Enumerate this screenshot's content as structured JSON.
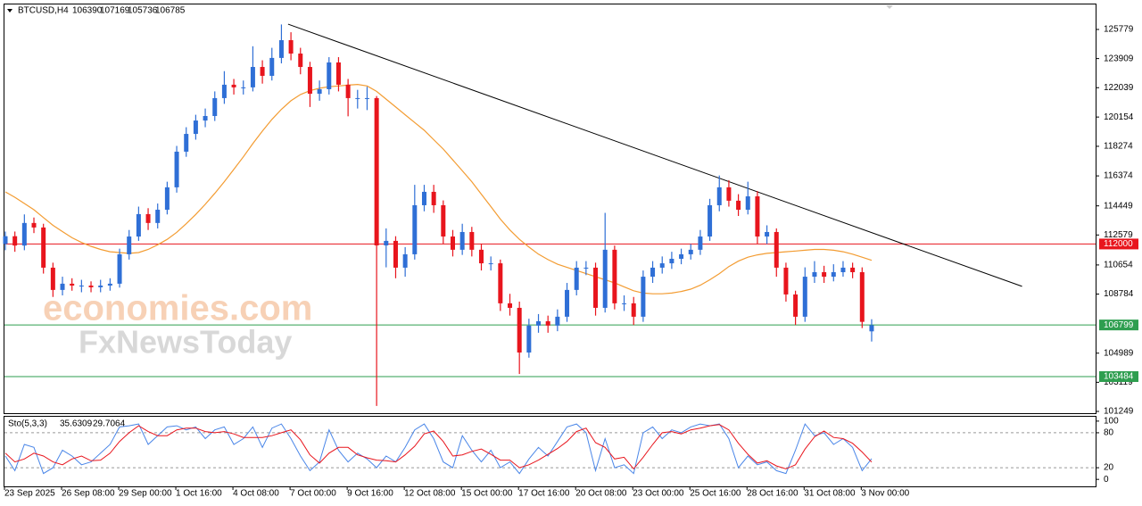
{
  "chart_data": {
    "type": "candlestick",
    "symbol": "BTCUSD,H4",
    "categories": [
      "23 Sep 2025",
      null,
      null,
      null,
      null,
      null,
      "26 Sep 08:00",
      null,
      null,
      null,
      null,
      null,
      "29 Sep 00:00",
      null,
      null,
      null,
      null,
      null,
      "1 Oct 16:00",
      null,
      null,
      null,
      null,
      null,
      "4 Oct 08:00",
      null,
      null,
      null,
      null,
      null,
      "7 Oct 00:00",
      null,
      null,
      null,
      null,
      null,
      "9 Oct 16:00",
      null,
      null,
      null,
      null,
      null,
      "12 Oct 08:00",
      null,
      null,
      null,
      null,
      null,
      "15 Oct 00:00",
      null,
      null,
      null,
      null,
      null,
      "17 Oct 16:00",
      null,
      null,
      null,
      null,
      null,
      "20 Oct 08:00",
      null,
      null,
      null,
      null,
      null,
      "23 Oct 00:00",
      null,
      null,
      null,
      null,
      null,
      "25 Oct 16:00",
      null,
      null,
      null,
      null,
      null,
      "28 Oct 16:00",
      null,
      null,
      null,
      null,
      null,
      "31 Oct 08:00",
      null,
      null,
      null,
      null,
      null,
      "3 Nov 00:00",
      null
    ],
    "open": [
      112000,
      112500,
      111900,
      113350,
      113060,
      110480,
      109050,
      109450,
      109330,
      109330,
      109220,
      109330,
      109450,
      111340,
      112480,
      113920,
      113350,
      114200,
      115640,
      117930,
      119070,
      119930,
      120220,
      121370,
      122230,
      122060,
      122060,
      123370,
      122800,
      123950,
      125090,
      124230,
      123370,
      121650,
      121940,
      123660,
      122230,
      121370,
      121370,
      121370,
      111910,
      112200,
      110480,
      111340,
      114490,
      115350,
      114490,
      112480,
      111630,
      112770,
      111630,
      110760,
      110760,
      108190,
      107900,
      105030,
      106760,
      107040,
      106760,
      107330,
      109050,
      110480,
      110480,
      107900,
      111630,
      108190,
      108190,
      107330,
      109900,
      110480,
      110760,
      111050,
      111340,
      111630,
      112480,
      114490,
      115640,
      114780,
      114200,
      115060,
      112480,
      112770,
      110480,
      108760,
      107330,
      109900,
      110190,
      109900,
      110190,
      110480,
      110190,
      106390
    ],
    "high": [
      112800,
      112800,
      113900,
      113700,
      113300,
      110800,
      109900,
      109800,
      109700,
      109600,
      109700,
      109800,
      111700,
      112900,
      114400,
      114300,
      114600,
      116000,
      118300,
      119500,
      120300,
      120700,
      121800,
      123100,
      122600,
      122500,
      124700,
      123800,
      124600,
      126100,
      125600,
      124600,
      123700,
      122500,
      124000,
      124000,
      122600,
      121900,
      122100,
      121500,
      113000,
      112500,
      111800,
      115800,
      115800,
      115800,
      114800,
      112900,
      113300,
      113100,
      112000,
      111200,
      111000,
      108800,
      108300,
      107200,
      107500,
      107400,
      107800,
      109500,
      110900,
      110900,
      110800,
      114000,
      111900,
      108700,
      108600,
      110300,
      110900,
      111200,
      111500,
      111700,
      112000,
      112900,
      114900,
      116400,
      116100,
      115200,
      116000,
      115400,
      113200,
      113000,
      110800,
      109000,
      110500,
      110900,
      110600,
      110700,
      110900,
      110800,
      110500,
      107169
    ],
    "low": [
      111600,
      111500,
      111600,
      112700,
      110100,
      108600,
      108700,
      109000,
      108900,
      108900,
      108900,
      109000,
      109200,
      111000,
      112200,
      112900,
      113000,
      113900,
      115300,
      117600,
      118700,
      119500,
      119900,
      121000,
      121600,
      121600,
      121800,
      122300,
      122500,
      123600,
      123800,
      122900,
      120800,
      121200,
      121600,
      121800,
      120200,
      120700,
      120600,
      101600,
      110500,
      109800,
      109900,
      111000,
      114100,
      114000,
      112000,
      111200,
      111300,
      111200,
      110300,
      110300,
      107700,
      107400,
      103650,
      104700,
      106300,
      106300,
      106400,
      107000,
      108700,
      110000,
      107400,
      107600,
      107800,
      107700,
      106800,
      107000,
      109500,
      110100,
      110400,
      110700,
      111000,
      111300,
      112200,
      114100,
      114400,
      113800,
      113900,
      112000,
      112000,
      109900,
      108300,
      106800,
      107000,
      109500,
      109500,
      109600,
      109900,
      109800,
      106600,
      105736
    ],
    "close": [
      112500,
      111900,
      113350,
      113060,
      110480,
      109050,
      109450,
      109330,
      109330,
      109220,
      109330,
      109450,
      111340,
      112480,
      113920,
      113350,
      114200,
      115640,
      117930,
      119070,
      119930,
      120220,
      121370,
      122230,
      122060,
      122060,
      123370,
      122800,
      123950,
      125090,
      124230,
      123370,
      121650,
      121940,
      123660,
      122230,
      121370,
      121370,
      121370,
      111910,
      112200,
      110480,
      111340,
      114490,
      115350,
      114490,
      112480,
      111630,
      112770,
      111630,
      110760,
      110760,
      108190,
      107900,
      105030,
      106760,
      107040,
      106760,
      107330,
      109050,
      110480,
      110480,
      107900,
      111630,
      108190,
      108190,
      107330,
      109900,
      110480,
      110760,
      111050,
      111340,
      111630,
      112480,
      114490,
      115640,
      114780,
      114200,
      115060,
      112480,
      112770,
      110480,
      108760,
      107330,
      109900,
      110190,
      109900,
      110190,
      110480,
      110190,
      107000,
      106785
    ],
    "up_color": "#2f6fd6",
    "down_color": "#e8151d",
    "ylim": [
      101134,
      127441
    ],
    "yticks": [
      125779,
      123909,
      122039,
      120154,
      118274,
      116374,
      114449,
      112579,
      110654,
      108784,
      104989,
      103119,
      101249
    ],
    "levels": [
      {
        "value": 112000,
        "color": "#e8151d"
      },
      {
        "value": 106799,
        "color": "#2e9e4f"
      },
      {
        "value": 103484,
        "color": "#2e9e4f"
      }
    ],
    "moving_average": {
      "color": "#f39c32",
      "values": [
        115350,
        115000,
        114600,
        114200,
        113700,
        113200,
        112800,
        112400,
        112100,
        111850,
        111650,
        111500,
        111450,
        111400,
        111450,
        111650,
        111950,
        112300,
        112750,
        113300,
        113900,
        114550,
        115250,
        116000,
        116800,
        117600,
        118450,
        119250,
        120000,
        120650,
        121200,
        121600,
        121850,
        122000,
        122100,
        122150,
        122200,
        122250,
        122150,
        121800,
        121300,
        120800,
        120300,
        119800,
        119300,
        118700,
        118100,
        117400,
        116700,
        116000,
        115200,
        114400,
        113600,
        112900,
        112300,
        111800,
        111350,
        111000,
        110700,
        110500,
        110300,
        110100,
        109900,
        109700,
        109500,
        109250,
        109000,
        108850,
        108800,
        108800,
        108850,
        108950,
        109100,
        109350,
        109700,
        110100,
        110550,
        110900,
        111150,
        111300,
        111400,
        111450,
        111500,
        111550,
        111600,
        111650,
        111650,
        111600,
        111500,
        111350,
        111150,
        110950
      ]
    },
    "trendline": {
      "x": [
        29.7,
        106.8
      ],
      "y": [
        126120,
        109280
      ],
      "color": "#000000"
    },
    "stochastic": {
      "label": "Sto(5,3,3)",
      "ylim": [
        -12,
        109
      ],
      "yticks": [
        0,
        20,
        80,
        100
      ],
      "main": {
        "color": "#4a86e8",
        "values": [
          40,
          15,
          60,
          55,
          10,
          20,
          50,
          40,
          25,
          30,
          45,
          60,
          90,
          92,
          95,
          60,
          75,
          90,
          92,
          85,
          90,
          70,
          85,
          90,
          60,
          70,
          90,
          55,
          88,
          95,
          70,
          40,
          15,
          30,
          85,
          50,
          30,
          45,
          35,
          20,
          40,
          30,
          55,
          85,
          95,
          70,
          30,
          20,
          75,
          50,
          30,
          50,
          20,
          30,
          10,
          35,
          55,
          40,
          65,
          90,
          95,
          80,
          15,
          70,
          20,
          25,
          10,
          80,
          90,
          70,
          85,
          80,
          90,
          95,
          92,
          95,
          70,
          20,
          40,
          25,
          30,
          15,
          10,
          50,
          95,
          75,
          80,
          60,
          70,
          55,
          15,
          35.6309
        ]
      },
      "signal": {
        "color": "#e8151d",
        "values": [
          45,
          30,
          35,
          45,
          40,
          30,
          25,
          35,
          40,
          32,
          33,
          45,
          65,
          80,
          92,
          82,
          75,
          75,
          85,
          88,
          88,
          82,
          80,
          82,
          78,
          72,
          72,
          72,
          75,
          80,
          85,
          68,
          42,
          28,
          45,
          55,
          55,
          42,
          37,
          33,
          32,
          30,
          42,
          57,
          78,
          83,
          65,
          40,
          42,
          48,
          52,
          43,
          33,
          33,
          20,
          25,
          33,
          43,
          53,
          65,
          82,
          88,
          63,
          55,
          35,
          38,
          18,
          38,
          60,
          80,
          82,
          78,
          85,
          88,
          92,
          94,
          85,
          62,
          43,
          28,
          32,
          23,
          18,
          25,
          52,
          73,
          83,
          72,
          70,
          62,
          47,
          29.7064
        ]
      }
    },
    "watermark": [
      "economies.com",
      "FxNewsToday"
    ]
  }
}
